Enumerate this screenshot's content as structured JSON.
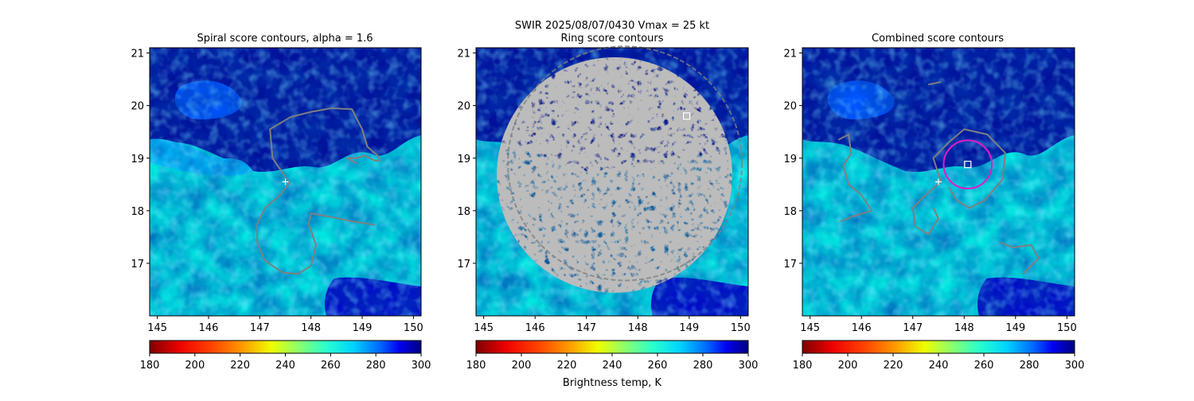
{
  "suptitle_line": "SWIR  2025/08/07/0430    Vmax = 25 kt",
  "colorbar_label": "Brightness temp, K",
  "colors": {
    "contour": "#7f7f7f",
    "marker": "#ffffff",
    "circle": "#e619c8",
    "field_low": "#00e5e0",
    "field_high": "#00008b"
  },
  "chart_data": [
    {
      "type": "heatmap",
      "title": "Spiral score contours, alpha =  1.6",
      "xlim": [
        144.85,
        150.15
      ],
      "ylim": [
        16.0,
        21.1
      ],
      "xticks": [
        145,
        146,
        147,
        148,
        149,
        150
      ],
      "yticks": [
        17,
        18,
        19,
        20,
        21
      ],
      "grid": false,
      "field": "brightness temperature (K)",
      "colorbar": {
        "range": [
          180,
          300
        ],
        "ticks": [
          180,
          200,
          220,
          240,
          260,
          280,
          300
        ],
        "cmap": "jet_r"
      },
      "markers": [
        {
          "symbol": "plus",
          "x": 147.5,
          "y": 18.55
        }
      ],
      "contours": [
        [
          [
            147.58,
            18.53
          ],
          [
            147.25,
            19.0
          ],
          [
            147.2,
            19.55
          ],
          [
            147.6,
            19.78
          ],
          [
            148.0,
            19.88
          ],
          [
            148.4,
            19.95
          ],
          [
            148.8,
            19.93
          ],
          [
            149.0,
            19.55
          ],
          [
            149.1,
            19.22
          ],
          [
            149.3,
            19.05
          ],
          [
            149.35,
            18.95
          ],
          [
            149.25,
            18.95
          ],
          [
            149.05,
            19.05
          ],
          [
            148.9,
            19.0
          ],
          [
            148.7,
            19.0
          ],
          [
            148.9,
            18.9
          ]
        ],
        [
          [
            147.58,
            18.53
          ],
          [
            147.4,
            18.3
          ],
          [
            147.1,
            18.05
          ],
          [
            146.95,
            17.75
          ],
          [
            146.95,
            17.4
          ],
          [
            147.1,
            17.05
          ],
          [
            147.45,
            16.82
          ],
          [
            147.75,
            16.8
          ],
          [
            148.0,
            16.95
          ],
          [
            148.1,
            17.35
          ],
          [
            147.95,
            17.75
          ],
          [
            148.0,
            17.95
          ],
          [
            148.4,
            17.88
          ],
          [
            148.8,
            17.8
          ],
          [
            149.25,
            17.73
          ]
        ]
      ]
    },
    {
      "type": "heatmap",
      "title": "Ring score contours",
      "xlim": [
        144.85,
        150.15
      ],
      "ylim": [
        16.0,
        21.1
      ],
      "xticks": [
        145,
        146,
        147,
        148,
        149,
        150
      ],
      "yticks": [
        17,
        18,
        19,
        20,
        21
      ],
      "grid": false,
      "field": "brightness temperature (K)",
      "colorbar": {
        "range": [
          180,
          300
        ],
        "ticks": [
          180,
          200,
          220,
          240,
          260,
          280,
          300
        ],
        "cmap": "jet_r"
      },
      "markers": [
        {
          "symbol": "square",
          "x": 148.95,
          "y": 19.8
        }
      ],
      "contour_region": {
        "center": [
          147.75,
          18.9
        ],
        "radius_deg": 2.4
      }
    },
    {
      "type": "heatmap",
      "title": "Combined score contours",
      "xlim": [
        144.85,
        150.15
      ],
      "ylim": [
        16.0,
        21.1
      ],
      "xticks": [
        145,
        146,
        147,
        148,
        149,
        150
      ],
      "yticks": [
        17,
        18,
        19,
        20,
        21
      ],
      "grid": false,
      "field": "brightness temperature (K)",
      "colorbar": {
        "range": [
          180,
          300
        ],
        "ticks": [
          180,
          200,
          220,
          240,
          260,
          280,
          300
        ],
        "cmap": "jet_r"
      },
      "markers": [
        {
          "symbol": "plus",
          "x": 147.5,
          "y": 18.55
        },
        {
          "symbol": "square",
          "x": 148.07,
          "y": 18.88
        }
      ],
      "circle": {
        "center": [
          148.07,
          18.88
        ],
        "radius_deg": 0.47
      },
      "contours": [
        [
          [
            147.55,
            18.55
          ],
          [
            147.4,
            19.0
          ],
          [
            147.7,
            19.3
          ],
          [
            148.0,
            19.55
          ],
          [
            148.45,
            19.45
          ],
          [
            148.8,
            19.1
          ],
          [
            148.75,
            18.6
          ],
          [
            148.4,
            18.2
          ],
          [
            148.1,
            18.05
          ],
          [
            147.85,
            18.2
          ],
          [
            147.7,
            18.45
          ]
        ],
        [
          [
            147.55,
            18.55
          ],
          [
            147.25,
            18.3
          ],
          [
            147.0,
            18.05
          ],
          [
            147.05,
            17.7
          ],
          [
            147.3,
            17.55
          ],
          [
            147.5,
            17.85
          ],
          [
            147.4,
            18.05
          ]
        ],
        [
          [
            145.55,
            19.35
          ],
          [
            145.75,
            19.45
          ],
          [
            145.8,
            19.1
          ],
          [
            145.65,
            18.85
          ],
          [
            145.75,
            18.5
          ],
          [
            146.0,
            18.3
          ],
          [
            146.2,
            18.0
          ],
          [
            145.85,
            17.9
          ],
          [
            145.6,
            17.8
          ]
        ],
        [
          [
            148.7,
            17.4
          ],
          [
            148.95,
            17.3
          ],
          [
            149.3,
            17.35
          ],
          [
            149.45,
            17.1
          ],
          [
            149.15,
            16.8
          ]
        ],
        [
          [
            147.3,
            20.4
          ],
          [
            147.55,
            20.45
          ]
        ]
      ]
    }
  ]
}
